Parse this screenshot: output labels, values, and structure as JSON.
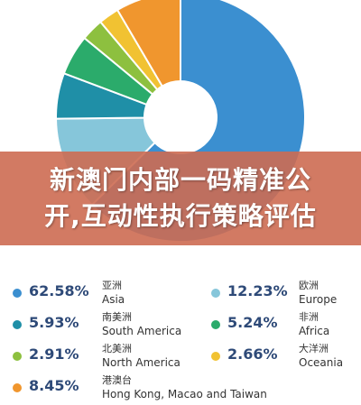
{
  "banner": {
    "line1": "新澳门内部一码精准公",
    "line2": "开,互动性执行策略评估"
  },
  "chart_data": {
    "type": "pie",
    "categories": [
      "Asia",
      "Europe",
      "South America",
      "Africa",
      "North America",
      "Oceania",
      "Hong Kong, Macao and Taiwan"
    ],
    "values": [
      62.58,
      12.23,
      5.93,
      5.24,
      2.91,
      2.66,
      8.45
    ]
  },
  "legend": [
    {
      "pct": "62.58%",
      "zh": "亚洲",
      "en": "Asia",
      "color": "#3b8fd0"
    },
    {
      "pct": "12.23%",
      "zh": "欧洲",
      "en": "Europe",
      "color": "#86c6da"
    },
    {
      "pct": "5.93%",
      "zh": "南美洲",
      "en": "South America",
      "color": "#1f8fa7"
    },
    {
      "pct": "5.24%",
      "zh": "非洲",
      "en": "Africa",
      "color": "#2bab6b"
    },
    {
      "pct": "2.91%",
      "zh": "北美洲",
      "en": "North America",
      "color": "#8dc03f"
    },
    {
      "pct": "2.66%",
      "zh": "大洋洲",
      "en": "Oceania",
      "color": "#f1c232"
    },
    {
      "pct": "8.45%",
      "zh": "港澳台",
      "en": "Hong Kong, Macao and Taiwan",
      "color": "#f0962e"
    }
  ]
}
